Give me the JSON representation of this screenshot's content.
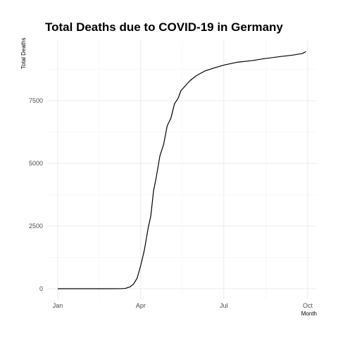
{
  "chart_data": {
    "type": "line",
    "title": "Total Deaths due to COVID-19 in Germany",
    "xlabel": "Month",
    "ylabel": "Total Deaths",
    "x_axis": "date",
    "xlim": [
      "2020-01-01",
      "2020-10-01"
    ],
    "ylim": [
      0,
      9500
    ],
    "x_ticks": [
      {
        "label": "Jan",
        "date": "2020-01-01"
      },
      {
        "label": "Apr",
        "date": "2020-04-01"
      },
      {
        "label": "Jul",
        "date": "2020-07-01"
      },
      {
        "label": "Oct",
        "date": "2020-10-01"
      }
    ],
    "y_ticks": [
      0,
      2500,
      5000,
      7500
    ],
    "grid": true,
    "legend": "none",
    "series": [
      {
        "color": "#000000",
        "points": [
          {
            "x": "2020-01-01",
            "y": 0
          },
          {
            "x": "2020-02-01",
            "y": 0
          },
          {
            "x": "2020-03-01",
            "y": 0
          },
          {
            "x": "2020-03-10",
            "y": 2
          },
          {
            "x": "2020-03-15",
            "y": 12
          },
          {
            "x": "2020-03-20",
            "y": 70
          },
          {
            "x": "2020-03-24",
            "y": 180
          },
          {
            "x": "2020-03-28",
            "y": 420
          },
          {
            "x": "2020-04-01",
            "y": 930
          },
          {
            "x": "2020-04-05",
            "y": 1550
          },
          {
            "x": "2020-04-09",
            "y": 2400
          },
          {
            "x": "2020-04-12",
            "y": 2900
          },
          {
            "x": "2020-04-15",
            "y": 3900
          },
          {
            "x": "2020-04-18",
            "y": 4450
          },
          {
            "x": "2020-04-22",
            "y": 5300
          },
          {
            "x": "2020-04-26",
            "y": 5750
          },
          {
            "x": "2020-04-30",
            "y": 6500
          },
          {
            "x": "2020-05-04",
            "y": 6800
          },
          {
            "x": "2020-05-08",
            "y": 7380
          },
          {
            "x": "2020-05-12",
            "y": 7600
          },
          {
            "x": "2020-05-15",
            "y": 7900
          },
          {
            "x": "2020-05-20",
            "y": 8100
          },
          {
            "x": "2020-05-25",
            "y": 8300
          },
          {
            "x": "2020-06-01",
            "y": 8500
          },
          {
            "x": "2020-06-10",
            "y": 8680
          },
          {
            "x": "2020-06-20",
            "y": 8800
          },
          {
            "x": "2020-07-01",
            "y": 8920
          },
          {
            "x": "2020-07-15",
            "y": 9030
          },
          {
            "x": "2020-08-01",
            "y": 9100
          },
          {
            "x": "2020-08-15",
            "y": 9180
          },
          {
            "x": "2020-09-01",
            "y": 9260
          },
          {
            "x": "2020-09-15",
            "y": 9320
          },
          {
            "x": "2020-09-25",
            "y": 9380
          },
          {
            "x": "2020-09-29",
            "y": 9460
          }
        ]
      }
    ]
  }
}
